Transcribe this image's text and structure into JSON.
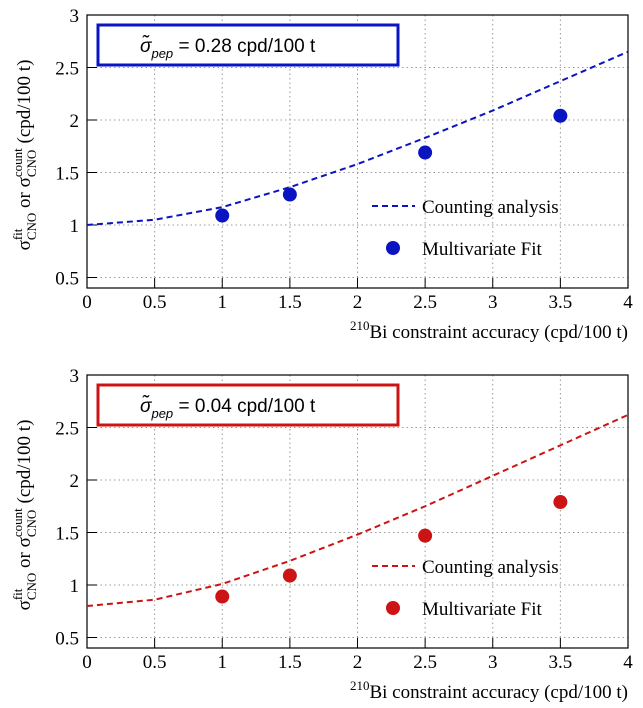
{
  "chart_data": [
    {
      "type": "line",
      "annotation_parts": [
        {
          "text": "σ̃",
          "italic": true
        },
        {
          "text": "pep",
          "pos": "sub",
          "italic": true
        },
        {
          "text": " = 0.28 cpd/100 t"
        }
      ],
      "ylabel_parts": [
        {
          "text": "σ"
        },
        {
          "text": "fit",
          "pos": "sup"
        },
        {
          "text": "CNO",
          "pos": "sub"
        },
        {
          "text": " or σ"
        },
        {
          "text": "count",
          "pos": "sup"
        },
        {
          "text": "CNO",
          "pos": "sub"
        },
        {
          "text": " (cpd/100 t)"
        }
      ],
      "xlabel_parts": [
        {
          "text": "210",
          "pos": "sup"
        },
        {
          "text": "Bi constraint accuracy (cpd/100 t)"
        }
      ],
      "color": "#0a14c0",
      "series": [
        {
          "name": "Counting analysis",
          "color": "#0a14c0",
          "style": "dashed",
          "x": [
            0,
            0.5,
            1,
            1.5,
            2,
            2.5,
            3,
            3.5,
            4
          ],
          "values": [
            1.0,
            1.05,
            1.17,
            1.36,
            1.58,
            1.83,
            2.09,
            2.37,
            2.65
          ]
        },
        {
          "name": "Multivariate Fit",
          "color": "#0a14c0",
          "style": "markers",
          "x": [
            1,
            1.5,
            2.5,
            3.5
          ],
          "values": [
            1.09,
            1.29,
            1.69,
            2.04
          ]
        }
      ],
      "xlim": [
        0,
        4
      ],
      "xticks": [
        0,
        0.5,
        1,
        1.5,
        2,
        2.5,
        3,
        3.5,
        4
      ],
      "ylim": [
        0.4,
        3
      ],
      "yticks": [
        0.5,
        1,
        1.5,
        2,
        2.5,
        3
      ],
      "grid": true
    },
    {
      "type": "line",
      "annotation_parts": [
        {
          "text": "σ̃",
          "italic": true
        },
        {
          "text": "pep",
          "pos": "sub",
          "italic": true
        },
        {
          "text": " = 0.04 cpd/100 t"
        }
      ],
      "ylabel_parts": [
        {
          "text": "σ"
        },
        {
          "text": "fit",
          "pos": "sup"
        },
        {
          "text": "CNO",
          "pos": "sub"
        },
        {
          "text": " or σ"
        },
        {
          "text": "count",
          "pos": "sup"
        },
        {
          "text": "CNO",
          "pos": "sub"
        },
        {
          "text": " (cpd/100 t)"
        }
      ],
      "xlabel_parts": [
        {
          "text": "210",
          "pos": "sup"
        },
        {
          "text": "Bi constraint accuracy (cpd/100 t)"
        }
      ],
      "color": "#cc1414",
      "series": [
        {
          "name": "Counting analysis",
          "color": "#cc1414",
          "style": "dashed",
          "x": [
            0,
            0.5,
            1,
            1.5,
            2,
            2.5,
            3,
            3.5,
            4
          ],
          "values": [
            0.8,
            0.86,
            1.01,
            1.23,
            1.48,
            1.75,
            2.04,
            2.33,
            2.62
          ]
        },
        {
          "name": "Multivariate Fit",
          "color": "#cc1414",
          "style": "markers",
          "x": [
            1,
            1.5,
            2.5,
            3.5
          ],
          "values": [
            0.89,
            1.09,
            1.47,
            1.79
          ]
        }
      ],
      "xlim": [
        0,
        4
      ],
      "xticks": [
        0,
        0.5,
        1,
        1.5,
        2,
        2.5,
        3,
        3.5,
        4
      ],
      "ylim": [
        0.4,
        3
      ],
      "yticks": [
        0.5,
        1,
        1.5,
        2,
        2.5,
        3
      ],
      "grid": true
    }
  ]
}
